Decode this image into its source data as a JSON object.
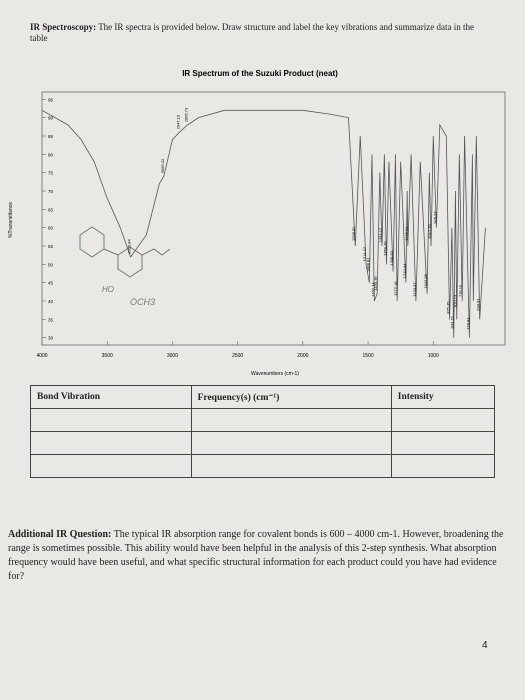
{
  "header": {
    "label": "IR Spectroscopy:",
    "text": "The IR spectra is provided below. Draw structure and label the key vibrations and summarize data in the table"
  },
  "chart_data": {
    "type": "line",
    "title": "IR Spectrum of the Suzuki Product (neat)",
    "x_label": "Wavenumbers (cm-1)",
    "y_label": "%Transmittance",
    "xlim": [
      4000,
      450
    ],
    "xticks": [
      4000,
      3500,
      3000,
      2500,
      2000,
      1500,
      1000
    ],
    "ylim": [
      28,
      97
    ],
    "yticks": [
      30,
      35,
      40,
      45,
      50,
      55,
      60,
      65,
      70,
      75,
      80,
      85,
      90,
      95
    ],
    "grid": false,
    "series": [
      {
        "name": "Suzuki Product",
        "color": "#555555",
        "x": [
          4000,
          3800,
          3700,
          3600,
          3500,
          3400,
          3320,
          3200,
          3100,
          3066,
          3000,
          2947,
          2885,
          2800,
          2600,
          2200,
          2000,
          1800,
          1650,
          1598,
          1560,
          1515,
          1490,
          1470,
          1452,
          1430,
          1410,
          1393,
          1375,
          1359,
          1340,
          1308,
          1290,
          1277,
          1250,
          1210,
          1200,
          1195,
          1170,
          1133,
          1100,
          1047,
          1030,
          1017,
          1000,
          976,
          950,
          900,
          875,
          857,
          843,
          830,
          820,
          800,
          778,
          760,
          723,
          700,
          693,
          670,
          644,
          600
        ],
        "values": [
          92,
          88,
          84,
          78,
          68,
          60,
          52,
          58,
          72,
          74,
          84,
          86,
          88,
          90,
          92,
          92,
          92,
          91,
          90,
          55,
          85,
          50,
          45,
          80,
          40,
          42,
          75,
          55,
          80,
          50,
          78,
          48,
          80,
          40,
          78,
          45,
          70,
          55,
          80,
          40,
          78,
          42,
          75,
          55,
          85,
          60,
          88,
          85,
          35,
          60,
          30,
          70,
          35,
          80,
          40,
          85,
          30,
          80,
          40,
          85,
          35,
          60
        ]
      }
    ],
    "peaks": [
      3320.84,
      3066.03,
      2947.19,
      2885.73,
      1598.82,
      1514.97,
      1488.81,
      1452.14,
      1430.36,
      1393.17,
      1359.79,
      1308.92,
      1277.18,
      1210.44,
      1195.21,
      1133.37,
      1047.89,
      1017.76,
      976.27,
      875.35,
      843.79,
      820.73,
      778.15,
      723.91,
      644.81
    ]
  },
  "handwriting": {
    "hydroxyl": "HO",
    "methoxy": "OCH3"
  },
  "table": {
    "headers": [
      "Bond Vibration",
      "Frequency(s) (cm⁻¹)",
      "Intensity"
    ]
  },
  "question": {
    "label": "Additional IR Question:",
    "text": "The typical IR absorption range for covalent bonds is 600 – 4000 cm-1. However, broadening the range is sometimes possible. This ability would have been helpful in the analysis of this 2-step synthesis. What absorption frequency would have been useful, and what specific structural information for each product could you have had evidence for?"
  },
  "page_number": "4"
}
